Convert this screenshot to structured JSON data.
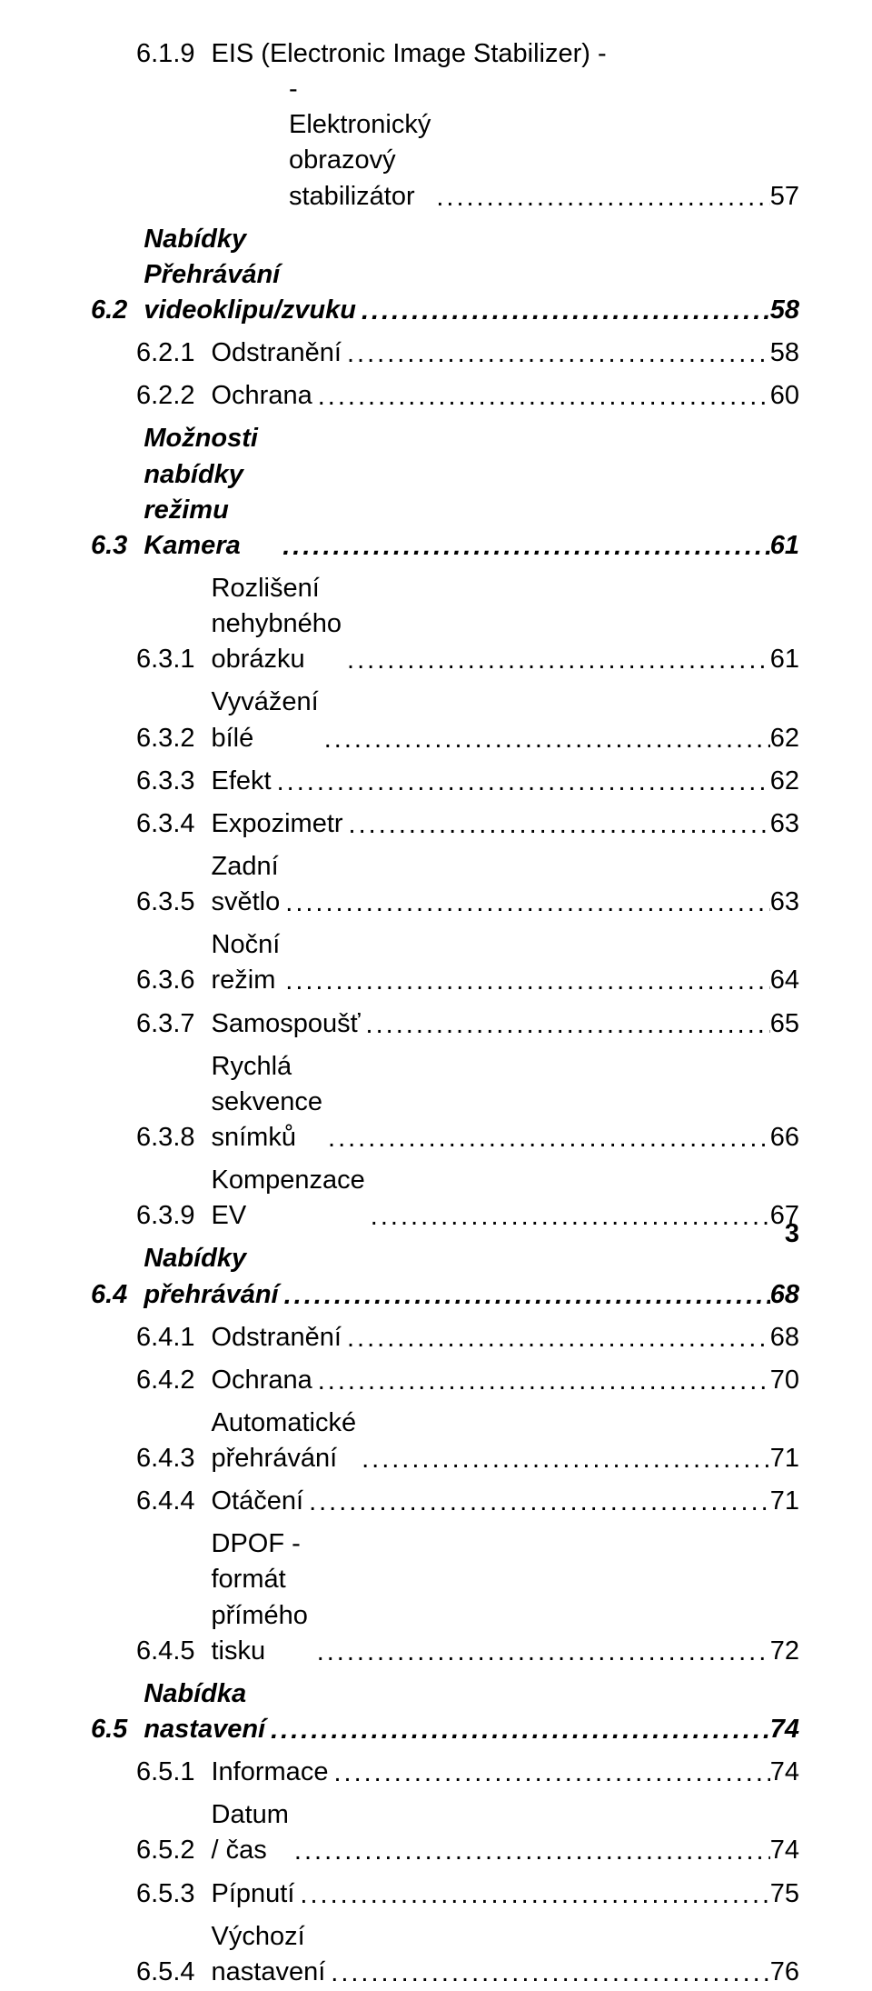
{
  "page_number": "3",
  "entries": [
    {
      "num": "6.1.9",
      "title_a": "EIS (Electronic Image Stabilizer) -",
      "title_b": "-Elektronický obrazový stabilizátor",
      "page": "57",
      "level": 2,
      "bold": false,
      "italic": false,
      "multiline": true
    },
    {
      "num": "6.2",
      "title": "Nabídky Přehrávání videoklipu/zvuku",
      "page": "58",
      "level": 1,
      "bold": true,
      "italic": true
    },
    {
      "num": "6.2.1",
      "title": "Odstranění",
      "page": "58",
      "level": 2
    },
    {
      "num": "6.2.2",
      "title": "Ochrana",
      "page": "60",
      "level": 2
    },
    {
      "num": "6.3",
      "title": "Možnosti nabídky režimu Kamera",
      "page": "61",
      "level": 1,
      "bold": true,
      "italic": true
    },
    {
      "num": "6.3.1",
      "title": "Rozlišení nehybného obrázku",
      "page": "61",
      "level": 2
    },
    {
      "num": "6.3.2",
      "title": "Vyvážení bílé",
      "page": "62",
      "level": 2
    },
    {
      "num": "6.3.3",
      "title": "Efekt",
      "page": "62",
      "level": 2
    },
    {
      "num": "6.3.4",
      "title": "Expozimetr",
      "page": "63",
      "level": 2
    },
    {
      "num": "6.3.5",
      "title": "Zadní světlo",
      "page": "63",
      "level": 2
    },
    {
      "num": "6.3.6",
      "title": "Noční režim",
      "page": "64",
      "level": 2
    },
    {
      "num": "6.3.7",
      "title": "Samospoušť",
      "page": "65",
      "level": 2
    },
    {
      "num": "6.3.8",
      "title": "Rychlá sekvence snímků",
      "page": "66",
      "level": 2
    },
    {
      "num": "6.3.9",
      "title": "Kompenzace EV",
      "page": "67",
      "level": 2
    },
    {
      "num": "6.4",
      "title": "Nabídky přehrávání",
      "page": "68",
      "level": 1,
      "bold": true,
      "italic": true
    },
    {
      "num": "6.4.1",
      "title": "Odstranění",
      "page": "68",
      "level": 2
    },
    {
      "num": "6.4.2",
      "title": "Ochrana",
      "page": "70",
      "level": 2
    },
    {
      "num": "6.4.3",
      "title": "Automatické přehrávání",
      "page": "71",
      "level": 2
    },
    {
      "num": "6.4.4",
      "title": "Otáčení",
      "page": "71",
      "level": 2
    },
    {
      "num": "6.4.5",
      "title": "DPOF - formát přímého tisku",
      "page": "72",
      "level": 2
    },
    {
      "num": "6.5",
      "title": "Nabídka nastavení",
      "page": "74",
      "level": 1,
      "bold": true,
      "italic": true
    },
    {
      "num": "6.5.1",
      "title": "Informace",
      "page": "74",
      "level": 2
    },
    {
      "num": "6.5.2",
      "title": "Datum / čas",
      "page": "74",
      "level": 2
    },
    {
      "num": "6.5.3",
      "title": "Pípnutí",
      "page": "75",
      "level": 2
    },
    {
      "num": "6.5.4",
      "title": "Výchozí nastavení",
      "page": "76",
      "level": 2
    }
  ]
}
